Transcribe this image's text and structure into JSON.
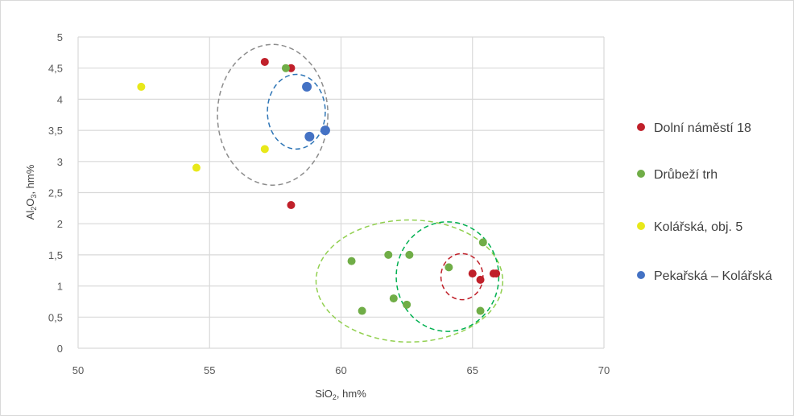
{
  "chart_data": {
    "type": "scatter",
    "title": "",
    "xlabel": {
      "base": "SiO",
      "sub": "2",
      "rest": ", hm%"
    },
    "ylabel": {
      "base": "Al",
      "sub1": "2",
      "mid": "O",
      "sub2": "3",
      "rest": ", hm%"
    },
    "xlim": [
      50,
      70
    ],
    "ylim": [
      0,
      5
    ],
    "x_ticks": [
      "50",
      "55",
      "60",
      "65",
      "70"
    ],
    "y_ticks": [
      "0",
      "0,5",
      "1",
      "1,5",
      "2",
      "2,5",
      "3",
      "3,5",
      "4",
      "4,5",
      "5"
    ],
    "grid": true,
    "legend_position": "right",
    "series": [
      {
        "name": "Dolní náměstí 18",
        "color": "#c0202a",
        "points": [
          [
            57.1,
            4.6
          ],
          [
            58.1,
            4.5
          ],
          [
            58.1,
            2.3
          ],
          [
            65.0,
            1.2
          ],
          [
            65.3,
            1.1
          ],
          [
            65.8,
            1.2
          ],
          [
            65.9,
            1.2
          ]
        ]
      },
      {
        "name": "Drůbeží trh",
        "color": "#70ad47",
        "points": [
          [
            57.9,
            4.5
          ],
          [
            60.4,
            1.4
          ],
          [
            61.8,
            1.5
          ],
          [
            62.6,
            1.5
          ],
          [
            64.1,
            1.3
          ],
          [
            65.4,
            1.7
          ],
          [
            60.8,
            0.6
          ],
          [
            62.0,
            0.8
          ],
          [
            62.5,
            0.7
          ],
          [
            65.3,
            0.6
          ]
        ]
      },
      {
        "name": "Kolářská, obj. 5",
        "color": "#e8e81a",
        "points": [
          [
            52.4,
            4.2
          ],
          [
            54.5,
            2.9
          ],
          [
            57.1,
            3.2
          ]
        ]
      },
      {
        "name": "Pekařská – Kolářská",
        "color": "#4472c4",
        "points": [
          [
            58.7,
            4.2
          ],
          [
            59.4,
            3.5
          ],
          [
            58.8,
            3.4
          ]
        ]
      }
    ],
    "ellipses": [
      {
        "cx": 57.4,
        "cy": 3.75,
        "rx": 2.1,
        "ry": 1.13,
        "color": "#8c8c8c"
      },
      {
        "cx": 58.3,
        "cy": 3.8,
        "rx": 1.1,
        "ry": 0.6,
        "color": "#2e75b6"
      },
      {
        "cx": 62.6,
        "cy": 1.08,
        "rx": 3.55,
        "ry": 0.98,
        "color": "#92d050"
      },
      {
        "cx": 64.05,
        "cy": 1.15,
        "rx": 1.95,
        "ry": 0.88,
        "color": "#00b050"
      },
      {
        "cx": 64.6,
        "cy": 1.15,
        "rx": 0.8,
        "ry": 0.37,
        "color": "#c0202a"
      }
    ]
  }
}
